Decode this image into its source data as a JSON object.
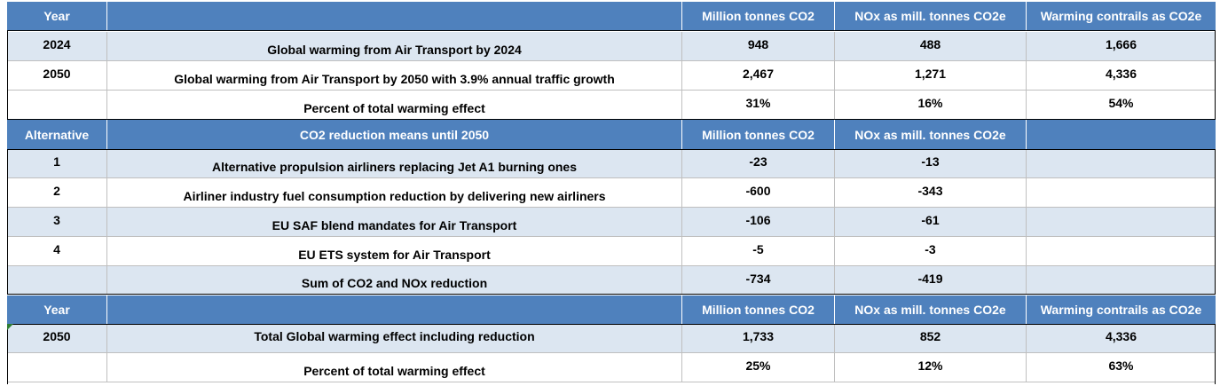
{
  "table": {
    "header1": [
      "Year",
      "",
      "Million tonnes CO2",
      "NOx as mill. tonnes CO2e",
      "Warming contrails as CO2e"
    ],
    "section1": [
      [
        "2024",
        "Global warming from Air Transport by 2024",
        "948",
        "488",
        "1,666"
      ],
      [
        "2050",
        "Global warming from Air Transport by 2050 with 3.9% annual traffic growth",
        "2,467",
        "1,271",
        "4,336"
      ],
      [
        "",
        "Percent of total warming effect",
        "31%",
        "16%",
        "54%"
      ]
    ],
    "header2": [
      "Alternative",
      "CO2 reduction means until 2050",
      "Million tonnes CO2",
      "NOx as mill. tonnes CO2e",
      ""
    ],
    "section2": [
      [
        "1",
        "Alternative propulsion airliners replacing Jet A1 burning ones",
        "-23",
        "-13",
        ""
      ],
      [
        "2",
        "Airliner industry fuel consumption reduction by delivering new airliners",
        "-600",
        "-343",
        ""
      ],
      [
        "3",
        "EU SAF blend mandates for Air Transport",
        "-106",
        "-61",
        ""
      ],
      [
        "4",
        "EU ETS system for Air Transport",
        "-5",
        "-3",
        ""
      ],
      [
        "",
        "Sum of CO2 and NOx reduction",
        "-734",
        "-419",
        ""
      ]
    ],
    "header3": [
      "Year",
      "",
      "Million tonnes CO2",
      "NOx as mill. tonnes CO2e",
      "Warming contrails as CO2e"
    ],
    "section3": [
      [
        "2050",
        "Total Global warming effect including reduction",
        "1,733",
        "852",
        "4,336"
      ],
      [
        "",
        "Percent of total warming effect",
        "25%",
        "12%",
        "63%"
      ]
    ]
  }
}
